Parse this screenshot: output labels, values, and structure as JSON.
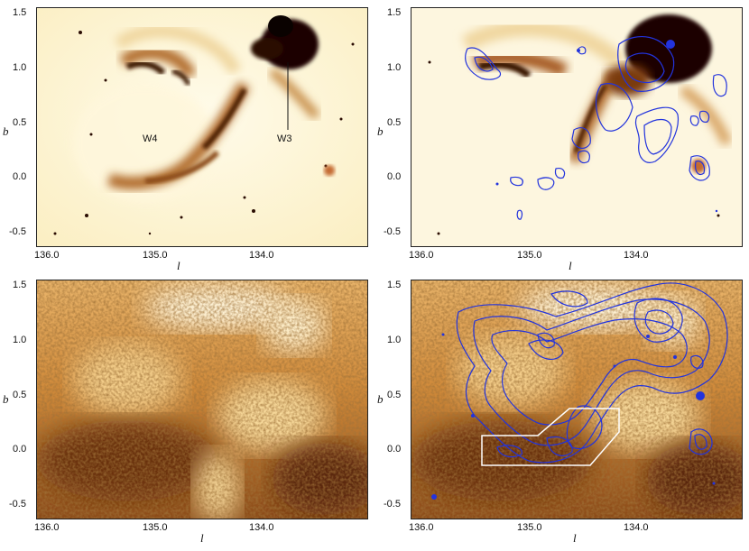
{
  "panels": [
    {
      "id": "top-left",
      "x_ticks": [
        "136.0",
        "135.0",
        "134.0"
      ],
      "y_ticks": [
        "1.5",
        "1.0",
        "0.5",
        "0.0",
        "-0.5"
      ],
      "xlabel": "l",
      "ylabel": "b",
      "annotations": [
        "W4",
        "W3"
      ]
    },
    {
      "id": "top-right",
      "x_ticks": [
        "136.0",
        "135.0",
        "134.0"
      ],
      "y_ticks": [
        "1.5",
        "1.0",
        "0.5",
        "0.0",
        "-0.5"
      ],
      "xlabel": "l",
      "ylabel": "b",
      "contour_color": "#2233dd"
    },
    {
      "id": "bottom-left",
      "x_ticks": [
        "136.0",
        "135.0",
        "134.0"
      ],
      "y_ticks": [
        "1.5",
        "1.0",
        "0.5",
        "0.0",
        "-0.5"
      ],
      "xlabel": "l",
      "ylabel": "b"
    },
    {
      "id": "bottom-right",
      "x_ticks": [
        "136.0",
        "135.0",
        "134.0"
      ],
      "y_ticks": [
        "1.5",
        "1.0",
        "0.5",
        "0.0",
        "-0.5"
      ],
      "xlabel": "l",
      "ylabel": "b",
      "contour_color": "#2233dd",
      "box_color": "#ffffff"
    }
  ]
}
